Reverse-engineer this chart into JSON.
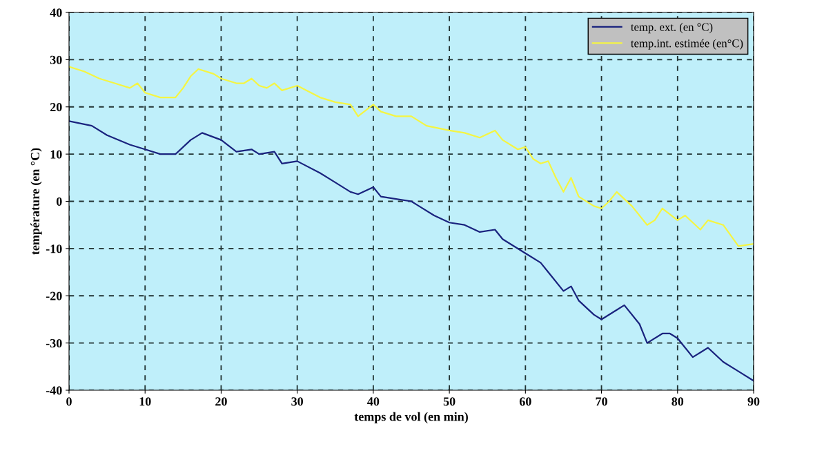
{
  "chart_data": {
    "type": "line",
    "xlabel": "temps de vol (en min)",
    "ylabel": "température (en °C)",
    "xlim": [
      0,
      90
    ],
    "xticks": [
      0,
      10,
      20,
      30,
      40,
      50,
      60,
      70,
      80,
      90
    ],
    "ylim": [
      -40,
      40
    ],
    "yticks": [
      -40,
      -30,
      -20,
      -10,
      0,
      10,
      20,
      30,
      40
    ],
    "grid": true,
    "legend": "top right",
    "marker": "none",
    "line_style": "solid",
    "series": [
      {
        "name": "temp. ext. (en °C)",
        "color": "#1a237e",
        "x": [
          0,
          3,
          5,
          8,
          10,
          12,
          14,
          16,
          17.5,
          20,
          22,
          24,
          25,
          27,
          28,
          30,
          33,
          35,
          37,
          38,
          40,
          41,
          43,
          45,
          46,
          48,
          50,
          52,
          54,
          56,
          57,
          60,
          62,
          63,
          65,
          66,
          67,
          69,
          70,
          72,
          73,
          75,
          76,
          78,
          79,
          80,
          81,
          82,
          84,
          86,
          88,
          90
        ],
        "values": [
          17,
          16,
          14,
          12,
          11,
          10,
          10,
          13,
          14.5,
          13,
          10.5,
          11,
          10,
          10.5,
          8,
          8.5,
          6,
          4,
          2,
          1.5,
          3,
          1,
          0.5,
          0,
          -1,
          -3,
          -4.5,
          -5,
          -6.5,
          -6,
          -8,
          -11,
          -13,
          -15,
          -19,
          -18,
          -21,
          -24,
          -25,
          -23,
          -22,
          -26,
          -30,
          -28,
          -28,
          -29,
          -31,
          -33,
          -31,
          -34,
          -36,
          -38
        ]
      },
      {
        "name": "temp.int. estimée (en°C)",
        "color": "#f5f542",
        "x": [
          0,
          2,
          4,
          6,
          8,
          9,
          10,
          12,
          14,
          15,
          16,
          17,
          19,
          20,
          22,
          23,
          24,
          25,
          26,
          27,
          28,
          30,
          33,
          35,
          37,
          38,
          40,
          41,
          43,
          45,
          47,
          50,
          52,
          54,
          56,
          57,
          59,
          60,
          61,
          62,
          63,
          64,
          65,
          66,
          67,
          69,
          70,
          71,
          72,
          74,
          76,
          77,
          78,
          80,
          81,
          83,
          84,
          86,
          88,
          90
        ],
        "values": [
          28.5,
          27.5,
          26,
          25,
          24,
          25,
          23,
          22,
          22,
          24,
          26.5,
          28,
          27,
          26,
          25,
          25,
          26,
          24.5,
          24,
          25,
          23.5,
          24.5,
          22,
          21,
          20.5,
          18,
          20.5,
          19,
          18,
          18,
          16,
          15,
          14.5,
          13.5,
          15,
          13,
          11,
          11.5,
          9,
          8,
          8.5,
          5,
          2,
          5,
          1,
          -1,
          -1.5,
          0,
          2,
          -1,
          -5,
          -4,
          -1.5,
          -4,
          -3,
          -6,
          -4,
          -5,
          -9.5,
          -9
        ]
      }
    ]
  }
}
